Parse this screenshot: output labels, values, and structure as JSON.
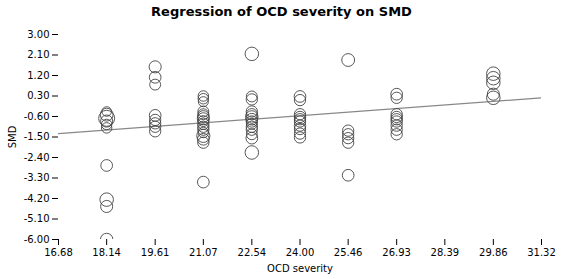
{
  "chart_data": {
    "type": "scatter",
    "title": "Regression of OCD severity on SMD",
    "xlabel": "OCD severity",
    "ylabel": "SMD",
    "xlim": [
      16.68,
      31.32
    ],
    "ylim": [
      -6.0,
      3.0
    ],
    "xticks": [
      16.68,
      18.14,
      19.61,
      21.07,
      22.54,
      {
        "value": 24.0,
        "label": "24.00"
      },
      25.46,
      26.93,
      28.39,
      29.86,
      31.32
    ],
    "yticks": [
      {
        "value": -6.0,
        "label": "-6.00"
      },
      {
        "value": -5.1,
        "label": "-5.10"
      },
      {
        "value": -4.2,
        "label": "-4.20"
      },
      {
        "value": -3.3,
        "label": "-3.30"
      },
      {
        "value": -2.4,
        "label": "-2.40"
      },
      {
        "value": -1.5,
        "label": "-1.50"
      },
      {
        "value": -0.6,
        "label": "-0.60"
      },
      {
        "value": 0.3,
        "label": "0.30"
      },
      {
        "value": 1.2,
        "label": "1.20"
      },
      {
        "value": 2.1,
        "label": "2.10"
      },
      {
        "value": 3.0,
        "label": "3.00"
      }
    ],
    "grid": false,
    "marker": "circle",
    "color": "#444444",
    "x": [
      18.14,
      18.14,
      18.14,
      18.14,
      18.14,
      18.14,
      18.14,
      18.14,
      18.14,
      18.14,
      19.61,
      19.61,
      19.61,
      19.61,
      19.61,
      19.61,
      19.61,
      19.61,
      21.07,
      21.07,
      21.07,
      21.07,
      21.07,
      21.07,
      21.07,
      21.07,
      21.07,
      21.07,
      21.07,
      21.07,
      21.07,
      21.07,
      21.07,
      21.07,
      22.54,
      22.54,
      22.54,
      22.54,
      22.54,
      22.54,
      22.54,
      22.54,
      22.54,
      22.54,
      22.54,
      22.54,
      22.54,
      22.54,
      24.0,
      24.0,
      24.0,
      24.0,
      24.0,
      24.0,
      24.0,
      24.0,
      24.0,
      24.0,
      25.46,
      25.46,
      25.46,
      25.46,
      25.46,
      25.46,
      26.93,
      26.93,
      26.93,
      26.93,
      26.93,
      26.93,
      26.93,
      26.93,
      26.93,
      29.86,
      29.86,
      29.86,
      29.86,
      29.86
    ],
    "y": [
      -0.52,
      -0.68,
      -0.8,
      -0.95,
      -1.1,
      -0.38,
      -2.75,
      -4.25,
      -4.55,
      -6.0,
      1.58,
      1.12,
      0.8,
      -0.55,
      -0.75,
      -0.9,
      -1.05,
      -1.25,
      0.3,
      0.18,
      0.05,
      -0.38,
      -0.5,
      -0.6,
      -0.7,
      -0.8,
      -0.92,
      -1.05,
      -1.18,
      -1.3,
      -1.45,
      -1.6,
      -1.75,
      -3.48,
      2.15,
      0.28,
      0.15,
      -0.38,
      -0.5,
      -0.62,
      -0.72,
      -0.82,
      -0.92,
      -1.05,
      -1.18,
      -1.38,
      -1.55,
      -2.18,
      0.28,
      0.12,
      -0.5,
      -0.62,
      -0.72,
      -0.82,
      -1.0,
      -1.15,
      -1.35,
      -1.52,
      1.88,
      -1.22,
      -1.38,
      -1.55,
      -1.75,
      -3.18,
      0.38,
      0.22,
      -0.5,
      -0.62,
      -0.72,
      -0.82,
      -1.0,
      -1.18,
      -1.38,
      1.28,
      1.08,
      0.88,
      0.38,
      0.22
    ],
    "sizes": [
      180,
      280,
      160,
      120,
      120,
      100,
      150,
      200,
      160,
      170,
      160,
      150,
      130,
      150,
      140,
      140,
      140,
      140,
      120,
      120,
      110,
      130,
      130,
      150,
      160,
      130,
      140,
      140,
      140,
      120,
      190,
      150,
      140,
      150,
      200,
      130,
      140,
      140,
      140,
      170,
      150,
      140,
      130,
      140,
      140,
      130,
      150,
      200,
      150,
      140,
      140,
      140,
      140,
      140,
      140,
      140,
      140,
      140,
      180,
      140,
      140,
      140,
      140,
      150,
      150,
      140,
      140,
      140,
      140,
      140,
      140,
      140,
      140,
      200,
      200,
      200,
      160,
      200
    ],
    "line": {
      "type": "line",
      "x": [
        16.68,
        31.32
      ],
      "y": [
        -1.35,
        0.22
      ],
      "color": "#888888"
    }
  }
}
